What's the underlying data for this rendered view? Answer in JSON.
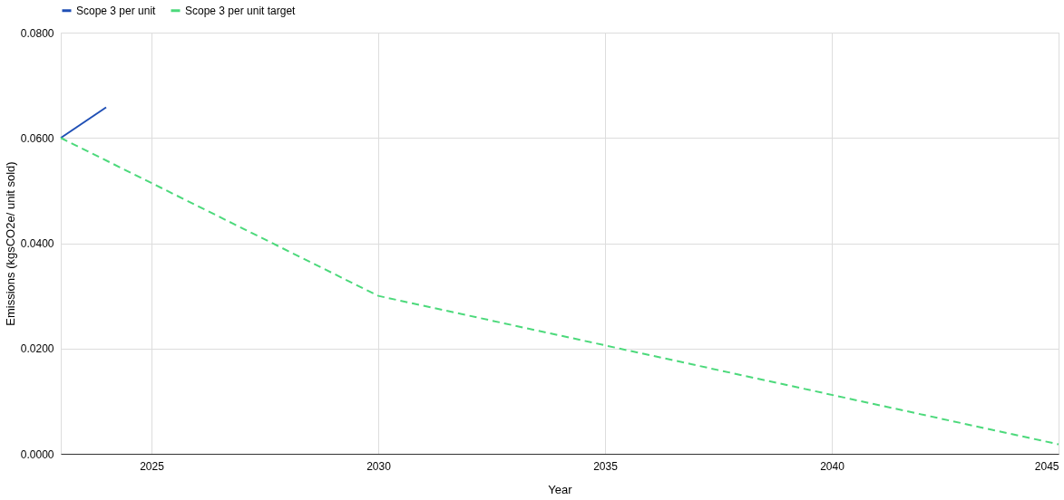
{
  "chart_data": {
    "type": "line",
    "xlabel": "Year",
    "ylabel": "Emissions (kgsCO2e/ unit sold)",
    "series": [
      {
        "name": "Scope 3 per unit",
        "color": "#1f4fb5",
        "line_style": "solid",
        "x": [
          2023,
          2024
        ],
        "values": [
          0.06,
          0.0658
        ]
      },
      {
        "name": "Scope 3 per unit target",
        "color": "#4cd97b",
        "line_style": "dashed",
        "x": [
          2023,
          2030,
          2045
        ],
        "values": [
          0.06,
          0.03,
          0.0018
        ]
      }
    ],
    "xlim": [
      2023,
      2045
    ],
    "xticks": [
      2025,
      2030,
      2035,
      2040,
      2045
    ],
    "ylim": [
      0,
      0.08
    ],
    "yticks": [
      {
        "value": 0,
        "label": "0.0000"
      },
      {
        "value": 0.02,
        "label": "0.0200"
      },
      {
        "value": 0.04,
        "label": "0.0400"
      },
      {
        "value": 0.06,
        "label": "0.0600"
      },
      {
        "value": 0.08,
        "label": "0.0800"
      }
    ],
    "grid": true,
    "legend": "top",
    "marker": "none"
  }
}
